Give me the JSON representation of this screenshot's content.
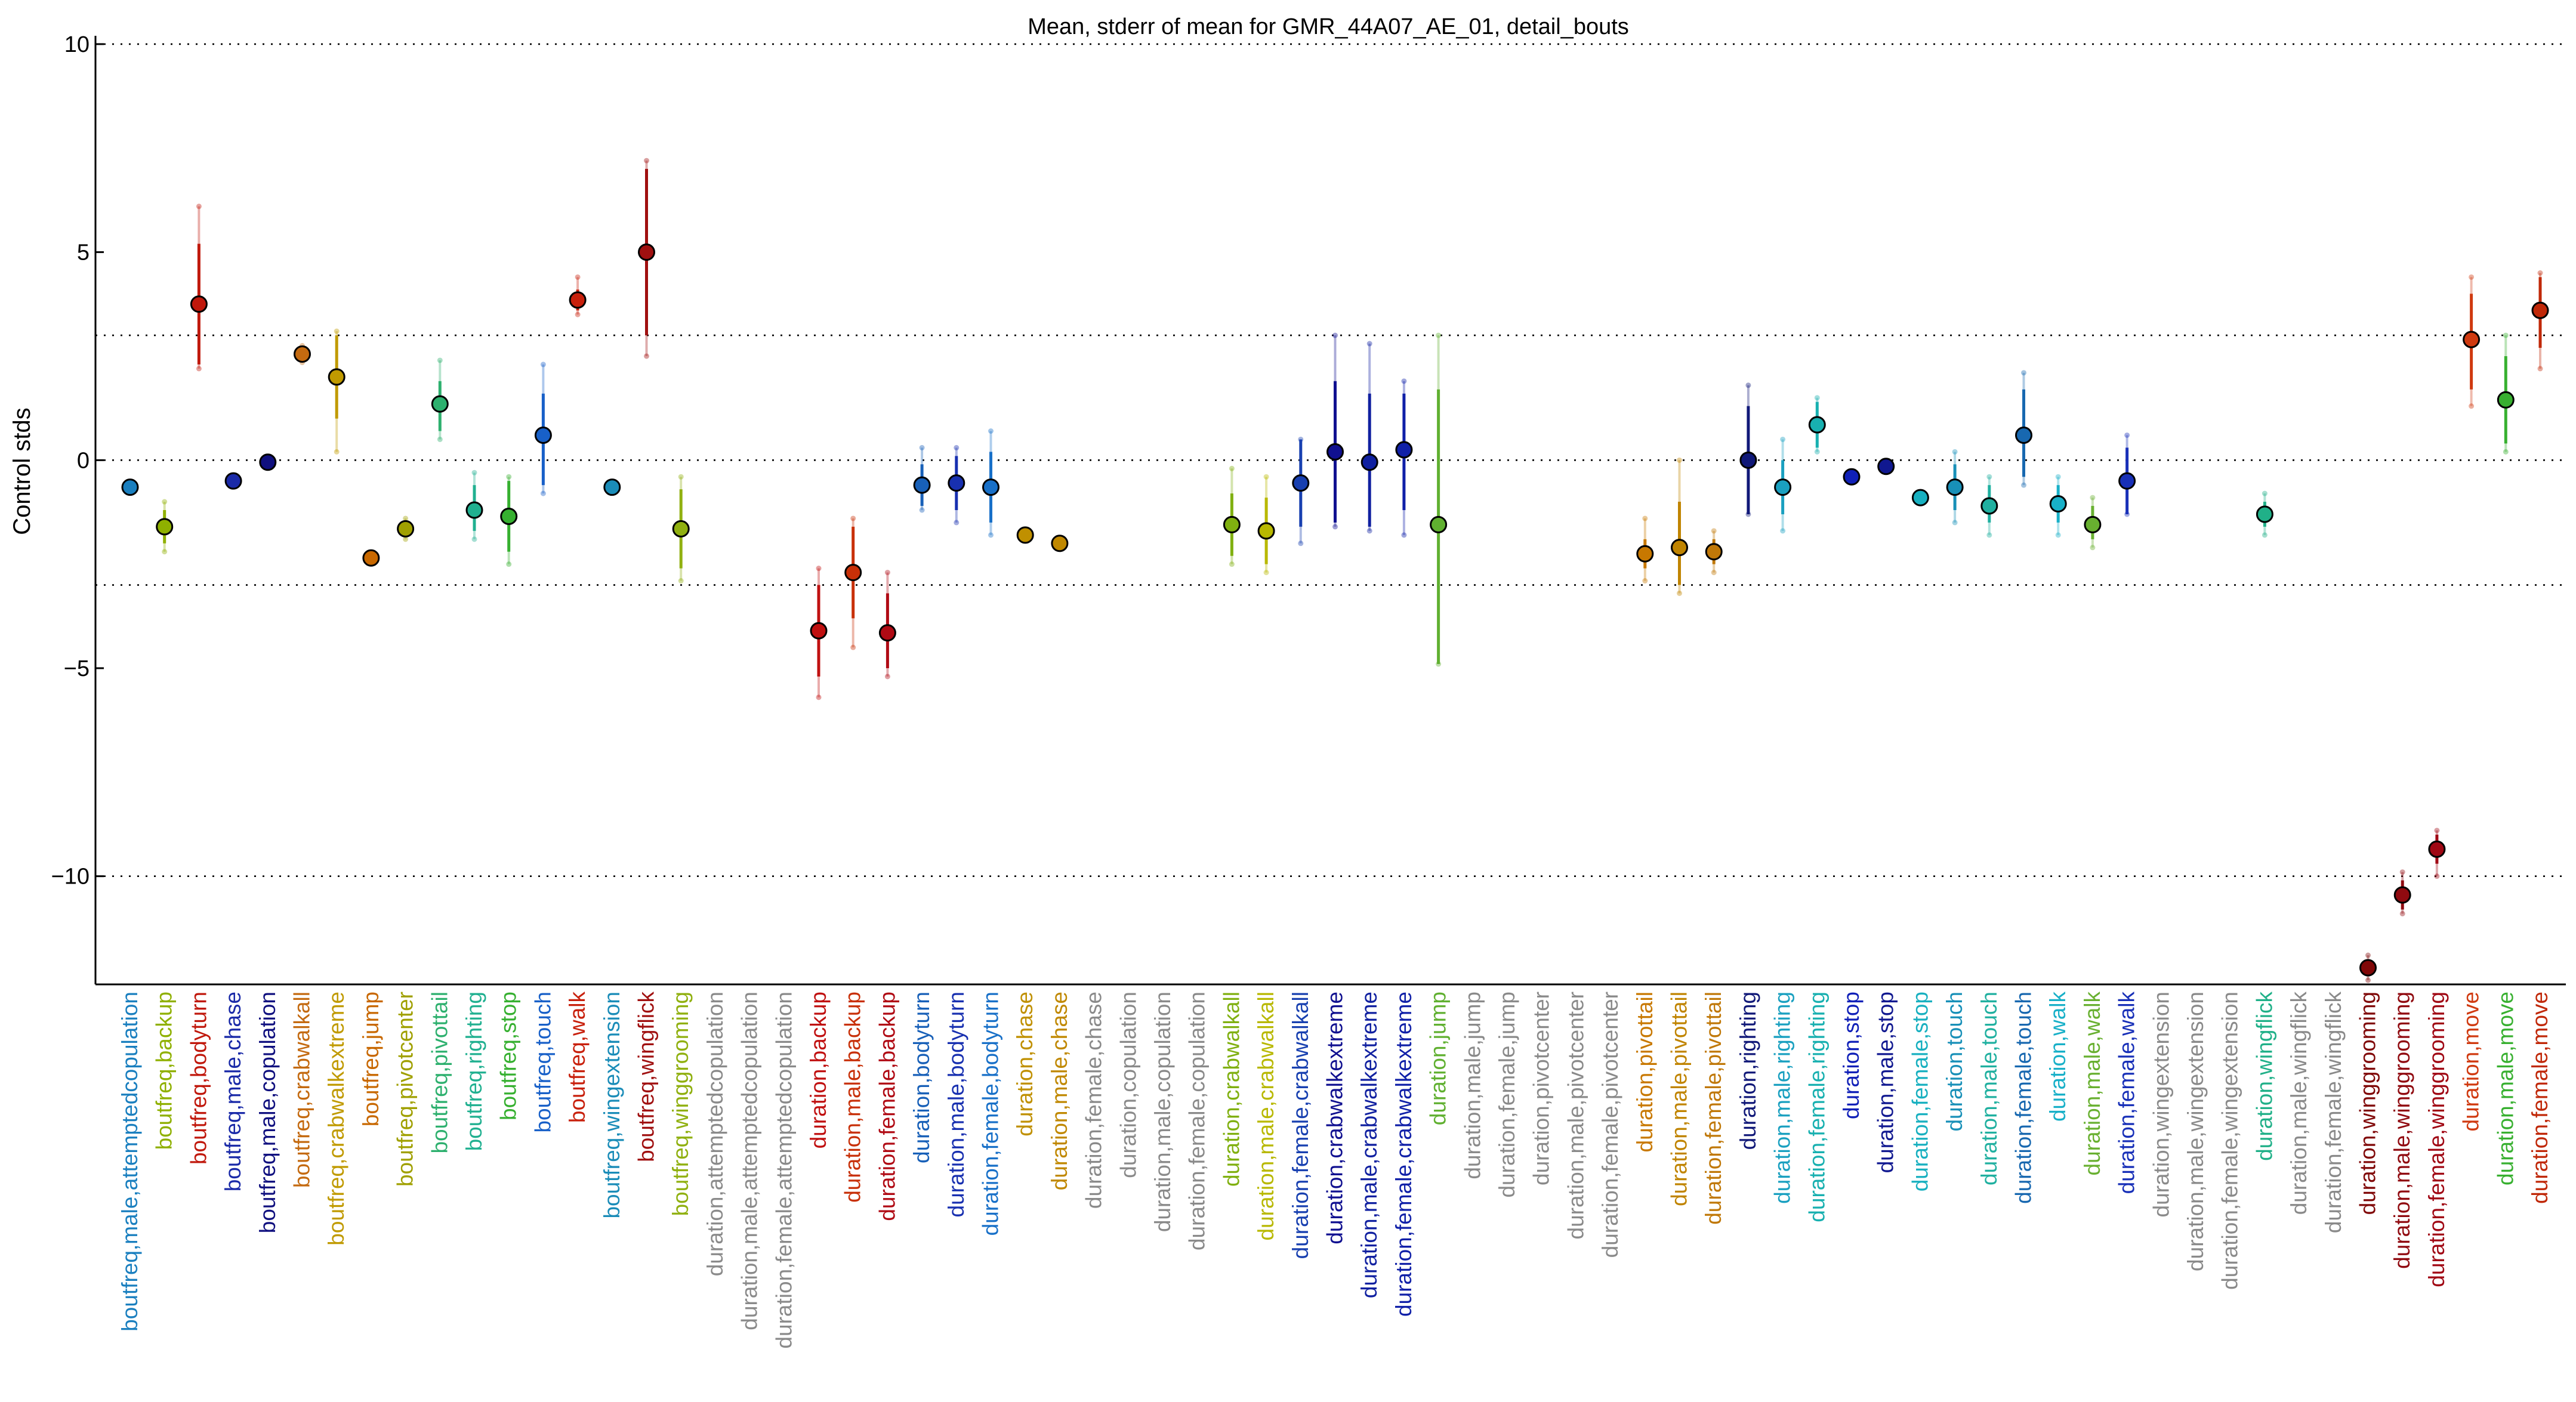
{
  "chart_data": {
    "type": "scatter",
    "title": "Mean, stderr of mean for GMR_44A07_AE_01, detail_bouts",
    "xlabel": "",
    "ylabel": "Control stds",
    "ylim": [
      -12.6,
      10.2
    ],
    "yticks": [
      10,
      5,
      0,
      -5,
      -10
    ],
    "gridlines_y": [
      10,
      3,
      0,
      -3,
      -10
    ],
    "grid": "dotted horizontal",
    "categories": [
      {
        "label": "boutfreq,male,attemptedcopulation",
        "color": "#1a7fbf",
        "mean": -0.65,
        "lo": -0.65,
        "hi": -0.65,
        "sdlo": -0.65,
        "sdhi": -0.65
      },
      {
        "label": "boutfreq,backup",
        "color": "#8fb000",
        "mean": -1.6,
        "lo": -2.0,
        "hi": -1.2,
        "sdlo": -2.2,
        "sdhi": -1.0
      },
      {
        "label": "boutfreq,bodyturn",
        "color": "#c0180c",
        "mean": 3.75,
        "lo": 2.3,
        "hi": 5.2,
        "sdlo": 2.2,
        "sdhi": 6.1
      },
      {
        "label": "boutfreq,male,chase",
        "color": "#1a2aa8",
        "mean": -0.5,
        "lo": -0.5,
        "hi": -0.5,
        "sdlo": -0.5,
        "sdhi": -0.5
      },
      {
        "label": "boutfreq,male,copulation",
        "color": "#10107f",
        "mean": -0.05,
        "lo": -0.05,
        "hi": -0.05,
        "sdlo": -0.05,
        "sdhi": -0.05
      },
      {
        "label": "boutfreq,crabwalkall",
        "color": "#c46a10",
        "mean": 2.55,
        "lo": 2.4,
        "hi": 2.7,
        "sdlo": 2.35,
        "sdhi": 2.75
      },
      {
        "label": "boutfreq,crabwalkextreme",
        "color": "#c09a00",
        "mean": 2.0,
        "lo": 1.0,
        "hi": 3.0,
        "sdlo": 0.2,
        "sdhi": 3.1
      },
      {
        "label": "boutfreq,jump",
        "color": "#c86800",
        "mean": -2.35,
        "lo": -2.35,
        "hi": -2.35,
        "sdlo": -2.35,
        "sdhi": -2.35
      },
      {
        "label": "boutfreq,pivotcenter",
        "color": "#a0a000",
        "mean": -1.65,
        "lo": -1.8,
        "hi": -1.5,
        "sdlo": -1.9,
        "sdhi": -1.4
      },
      {
        "label": "boutfreq,pivottail",
        "color": "#2db06e",
        "mean": 1.35,
        "lo": 0.7,
        "hi": 1.9,
        "sdlo": 0.5,
        "sdhi": 2.4
      },
      {
        "label": "boutfreq,righting",
        "color": "#20b090",
        "mean": -1.2,
        "lo": -1.7,
        "hi": -0.6,
        "sdlo": -1.9,
        "sdhi": -0.3
      },
      {
        "label": "boutfreq,stop",
        "color": "#36b030",
        "mean": -1.35,
        "lo": -2.2,
        "hi": -0.5,
        "sdlo": -2.5,
        "sdhi": -0.4
      },
      {
        "label": "boutfreq,touch",
        "color": "#1860c8",
        "mean": 0.6,
        "lo": -0.6,
        "hi": 1.6,
        "sdlo": -0.8,
        "sdhi": 2.3
      },
      {
        "label": "boutfreq,walk",
        "color": "#c8200c",
        "mean": 3.85,
        "lo": 3.6,
        "hi": 4.1,
        "sdlo": 3.5,
        "sdhi": 4.4
      },
      {
        "label": "boutfreq,wingextension",
        "color": "#1a8cb8",
        "mean": -0.65,
        "lo": -0.65,
        "hi": -0.65,
        "sdlo": -0.65,
        "sdhi": -0.65
      },
      {
        "label": "boutfreq,wingflick",
        "color": "#a01010",
        "mean": 5.0,
        "lo": 3.0,
        "hi": 7.0,
        "sdlo": 2.5,
        "sdhi": 7.2
      },
      {
        "label": "boutfreq,winggrooming",
        "color": "#90b010",
        "mean": -1.65,
        "lo": -2.6,
        "hi": -0.7,
        "sdlo": -2.9,
        "sdhi": -0.4
      },
      {
        "label": "duration,attemptedcopulation",
        "color": "#8a8a8a",
        "mean": null
      },
      {
        "label": "duration,male,attemptedcopulation",
        "color": "#8a8a8a",
        "mean": null
      },
      {
        "label": "duration,female,attemptedcopulation",
        "color": "#8a8a8a",
        "mean": null
      },
      {
        "label": "duration,backup",
        "color": "#c01010",
        "mean": -4.1,
        "lo": -5.2,
        "hi": -3.0,
        "sdlo": -5.7,
        "sdhi": -2.6
      },
      {
        "label": "duration,male,backup",
        "color": "#c83008",
        "mean": -2.7,
        "lo": -3.8,
        "hi": -1.6,
        "sdlo": -4.5,
        "sdhi": -1.4
      },
      {
        "label": "duration,female,backup",
        "color": "#b00a14",
        "mean": -4.15,
        "lo": -5.0,
        "hi": -3.2,
        "sdlo": -5.2,
        "sdhi": -2.7
      },
      {
        "label": "duration,bodyturn",
        "color": "#1860b8",
        "mean": -0.6,
        "lo": -1.1,
        "hi": -0.1,
        "sdlo": -1.2,
        "sdhi": 0.3
      },
      {
        "label": "duration,male,bodyturn",
        "color": "#1830b0",
        "mean": -0.55,
        "lo": -1.2,
        "hi": 0.1,
        "sdlo": -1.5,
        "sdhi": 0.3
      },
      {
        "label": "duration,female,bodyturn",
        "color": "#1870c8",
        "mean": -0.65,
        "lo": -1.5,
        "hi": 0.2,
        "sdlo": -1.8,
        "sdhi": 0.7
      },
      {
        "label": "duration,chase",
        "color": "#c09000",
        "mean": -1.8,
        "lo": -1.8,
        "hi": -1.8,
        "sdlo": -1.8,
        "sdhi": -1.8
      },
      {
        "label": "duration,male,chase",
        "color": "#c08800",
        "mean": -2.0,
        "lo": -2.0,
        "hi": -2.0,
        "sdlo": -2.0,
        "sdhi": -2.0
      },
      {
        "label": "duration,female,chase",
        "color": "#8a8a8a",
        "mean": null
      },
      {
        "label": "duration,copulation",
        "color": "#8a8a8a",
        "mean": null
      },
      {
        "label": "duration,male,copulation",
        "color": "#8a8a8a",
        "mean": null
      },
      {
        "label": "duration,female,copulation",
        "color": "#8a8a8a",
        "mean": null
      },
      {
        "label": "duration,crabwalkall",
        "color": "#80b010",
        "mean": -1.55,
        "lo": -2.3,
        "hi": -0.8,
        "sdlo": -2.5,
        "sdhi": -0.2
      },
      {
        "label": "duration,male,crabwalkall",
        "color": "#b8b800",
        "mean": -1.7,
        "lo": -2.5,
        "hi": -0.9,
        "sdlo": -2.7,
        "sdhi": -0.4
      },
      {
        "label": "duration,female,crabwalkall",
        "color": "#1840b0",
        "mean": -0.55,
        "lo": -1.6,
        "hi": 0.5,
        "sdlo": -2.0,
        "sdhi": 0.5
      },
      {
        "label": "duration,crabwalkextreme",
        "color": "#101090",
        "mean": 0.2,
        "lo": -1.5,
        "hi": 1.9,
        "sdlo": -1.6,
        "sdhi": 3.0
      },
      {
        "label": "duration,male,crabwalkextreme",
        "color": "#1020a0",
        "mean": -0.05,
        "lo": -1.6,
        "hi": 1.6,
        "sdlo": -1.7,
        "sdhi": 2.8
      },
      {
        "label": "duration,female,crabwalkextreme",
        "color": "#1020a8",
        "mean": 0.25,
        "lo": -1.2,
        "hi": 1.6,
        "sdlo": -1.8,
        "sdhi": 1.9
      },
      {
        "label": "duration,jump",
        "color": "#60b030",
        "mean": -1.55,
        "lo": -4.9,
        "hi": 1.7,
        "sdlo": -4.9,
        "sdhi": 3.0
      },
      {
        "label": "duration,male,jump",
        "color": "#8a8a8a",
        "mean": null
      },
      {
        "label": "duration,female,jump",
        "color": "#8a8a8a",
        "mean": null
      },
      {
        "label": "duration,pivotcenter",
        "color": "#8a8a8a",
        "mean": null
      },
      {
        "label": "duration,male,pivotcenter",
        "color": "#8a8a8a",
        "mean": null
      },
      {
        "label": "duration,female,pivotcenter",
        "color": "#8a8a8a",
        "mean": null
      },
      {
        "label": "duration,pivottail",
        "color": "#c87800",
        "mean": -2.25,
        "lo": -2.6,
        "hi": -1.9,
        "sdlo": -2.9,
        "sdhi": -1.4
      },
      {
        "label": "duration,male,pivottail",
        "color": "#c08400",
        "mean": -2.1,
        "lo": -3.0,
        "hi": -1.0,
        "sdlo": -3.2,
        "sdhi": 0.0
      },
      {
        "label": "duration,female,pivottail",
        "color": "#c07808",
        "mean": -2.2,
        "lo": -2.5,
        "hi": -1.9,
        "sdlo": -2.7,
        "sdhi": -1.7
      },
      {
        "label": "duration,righting",
        "color": "#101878",
        "mean": 0.0,
        "lo": -1.3,
        "hi": 1.3,
        "sdlo": -1.3,
        "sdhi": 1.8
      },
      {
        "label": "duration,male,righting",
        "color": "#1aa0c0",
        "mean": -0.65,
        "lo": -1.3,
        "hi": 0.0,
        "sdlo": -1.7,
        "sdhi": 0.5
      },
      {
        "label": "duration,female,righting",
        "color": "#18b0b0",
        "mean": 0.85,
        "lo": 0.3,
        "hi": 1.4,
        "sdlo": 0.2,
        "sdhi": 1.5
      },
      {
        "label": "duration,stop",
        "color": "#1020b8",
        "mean": -0.4,
        "lo": -0.4,
        "hi": -0.4,
        "sdlo": -0.4,
        "sdhi": -0.4
      },
      {
        "label": "duration,male,stop",
        "color": "#101890",
        "mean": -0.15,
        "lo": -0.15,
        "hi": -0.15,
        "sdlo": -0.15,
        "sdhi": -0.15
      },
      {
        "label": "duration,female,stop",
        "color": "#18b0c0",
        "mean": -0.9,
        "lo": -0.9,
        "hi": -0.9,
        "sdlo": -0.9,
        "sdhi": -0.9
      },
      {
        "label": "duration,touch",
        "color": "#1890b8",
        "mean": -0.65,
        "lo": -1.2,
        "hi": -0.1,
        "sdlo": -1.5,
        "sdhi": 0.2
      },
      {
        "label": "duration,male,touch",
        "color": "#20b0a0",
        "mean": -1.1,
        "lo": -1.5,
        "hi": -0.6,
        "sdlo": -1.8,
        "sdhi": -0.4
      },
      {
        "label": "duration,female,touch",
        "color": "#1868b0",
        "mean": 0.6,
        "lo": -0.4,
        "hi": 1.7,
        "sdlo": -0.6,
        "sdhi": 2.1
      },
      {
        "label": "duration,walk",
        "color": "#18b0c8",
        "mean": -1.05,
        "lo": -1.5,
        "hi": -0.6,
        "sdlo": -1.8,
        "sdhi": -0.4
      },
      {
        "label": "duration,male,walk",
        "color": "#68b030",
        "mean": -1.55,
        "lo": -1.9,
        "hi": -1.1,
        "sdlo": -2.1,
        "sdhi": -0.9
      },
      {
        "label": "duration,female,walk",
        "color": "#1830b8",
        "mean": -0.5,
        "lo": -1.3,
        "hi": 0.3,
        "sdlo": -1.3,
        "sdhi": 0.6
      },
      {
        "label": "duration,wingextension",
        "color": "#8a8a8a",
        "mean": null
      },
      {
        "label": "duration,male,wingextension",
        "color": "#8a8a8a",
        "mean": null
      },
      {
        "label": "duration,female,wingextension",
        "color": "#8a8a8a",
        "mean": null
      },
      {
        "label": "duration,wingflick",
        "color": "#20b088",
        "mean": -1.3,
        "lo": -1.6,
        "hi": -1.0,
        "sdlo": -1.8,
        "sdhi": -0.8
      },
      {
        "label": "duration,male,wingflick",
        "color": "#8a8a8a",
        "mean": null
      },
      {
        "label": "duration,female,wingflick",
        "color": "#8a8a8a",
        "mean": null
      },
      {
        "label": "duration,winggrooming",
        "color": "#800808",
        "mean": -12.2,
        "lo": -12.4,
        "hi": -12.0,
        "sdlo": -12.5,
        "sdhi": -11.9
      },
      {
        "label": "duration,male,winggrooming",
        "color": "#900a10",
        "mean": -10.45,
        "lo": -10.8,
        "hi": -10.1,
        "sdlo": -10.9,
        "sdhi": -9.9
      },
      {
        "label": "duration,female,winggrooming",
        "color": "#a00814",
        "mean": -9.35,
        "lo": -9.7,
        "hi": -9.0,
        "sdlo": -10.0,
        "sdhi": -8.9
      },
      {
        "label": "duration,move",
        "color": "#d03a10",
        "mean": 2.9,
        "lo": 1.7,
        "hi": 4.0,
        "sdlo": 1.3,
        "sdhi": 4.4
      },
      {
        "label": "duration,male,move",
        "color": "#38b030",
        "mean": 1.45,
        "lo": 0.4,
        "hi": 2.5,
        "sdlo": 0.2,
        "sdhi": 3.0
      },
      {
        "label": "duration,female,move",
        "color": "#c02808",
        "mean": 3.6,
        "lo": 2.7,
        "hi": 4.4,
        "sdlo": 2.2,
        "sdhi": 4.5
      }
    ]
  }
}
